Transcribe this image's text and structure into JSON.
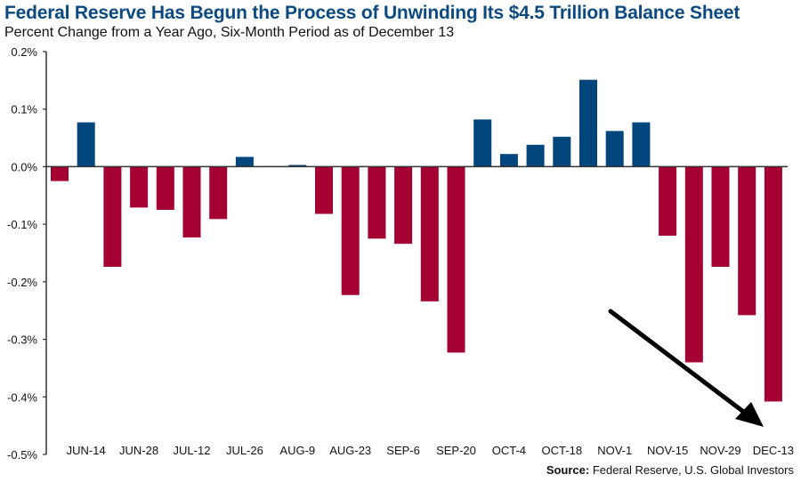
{
  "chart_data": {
    "type": "bar",
    "title": "Federal Reserve Has Begun the Process of Unwinding Its $4.5 Trillion Balance Sheet",
    "subtitle": "Percent Change from a Year Ago, Six-Month Period as of December 13",
    "source_label": "Source:",
    "source_text": "Federal Reserve, U.S. Global Investors",
    "ylim": [
      -0.5,
      0.2
    ],
    "yticks": [
      0.2,
      0.1,
      0.0,
      -0.1,
      -0.2,
      -0.3,
      -0.4,
      -0.5
    ],
    "ytick_labels": [
      "0.2%",
      "0.1%",
      "0.0%",
      "-0.1%",
      "-0.2%",
      "-0.3%",
      "-0.4%",
      "-0.5%"
    ],
    "xtick_labels": [
      "JUN-14",
      "JUN-28",
      "JUL-12",
      "JUL-26",
      "AUG-9",
      "AUG-23",
      "SEP-6",
      "SEP-20",
      "OCT-4",
      "OCT-18",
      "NOV-1",
      "NOV-15",
      "NOV-29",
      "DEC-13"
    ],
    "values": [
      -0.025,
      0.077,
      -0.174,
      -0.071,
      -0.075,
      -0.123,
      -0.091,
      0.017,
      0.001,
      0.003,
      -0.082,
      -0.223,
      -0.125,
      -0.134,
      -0.234,
      -0.323,
      0.082,
      0.022,
      0.038,
      0.052,
      0.151,
      0.062,
      0.077,
      -0.12,
      -0.34,
      -0.174,
      -0.258,
      -0.408
    ],
    "colors": {
      "positive": "#00457c",
      "negative": "#a50034",
      "title": "#0a4a80"
    },
    "annotation": "downward trend arrow",
    "grid": false
  }
}
